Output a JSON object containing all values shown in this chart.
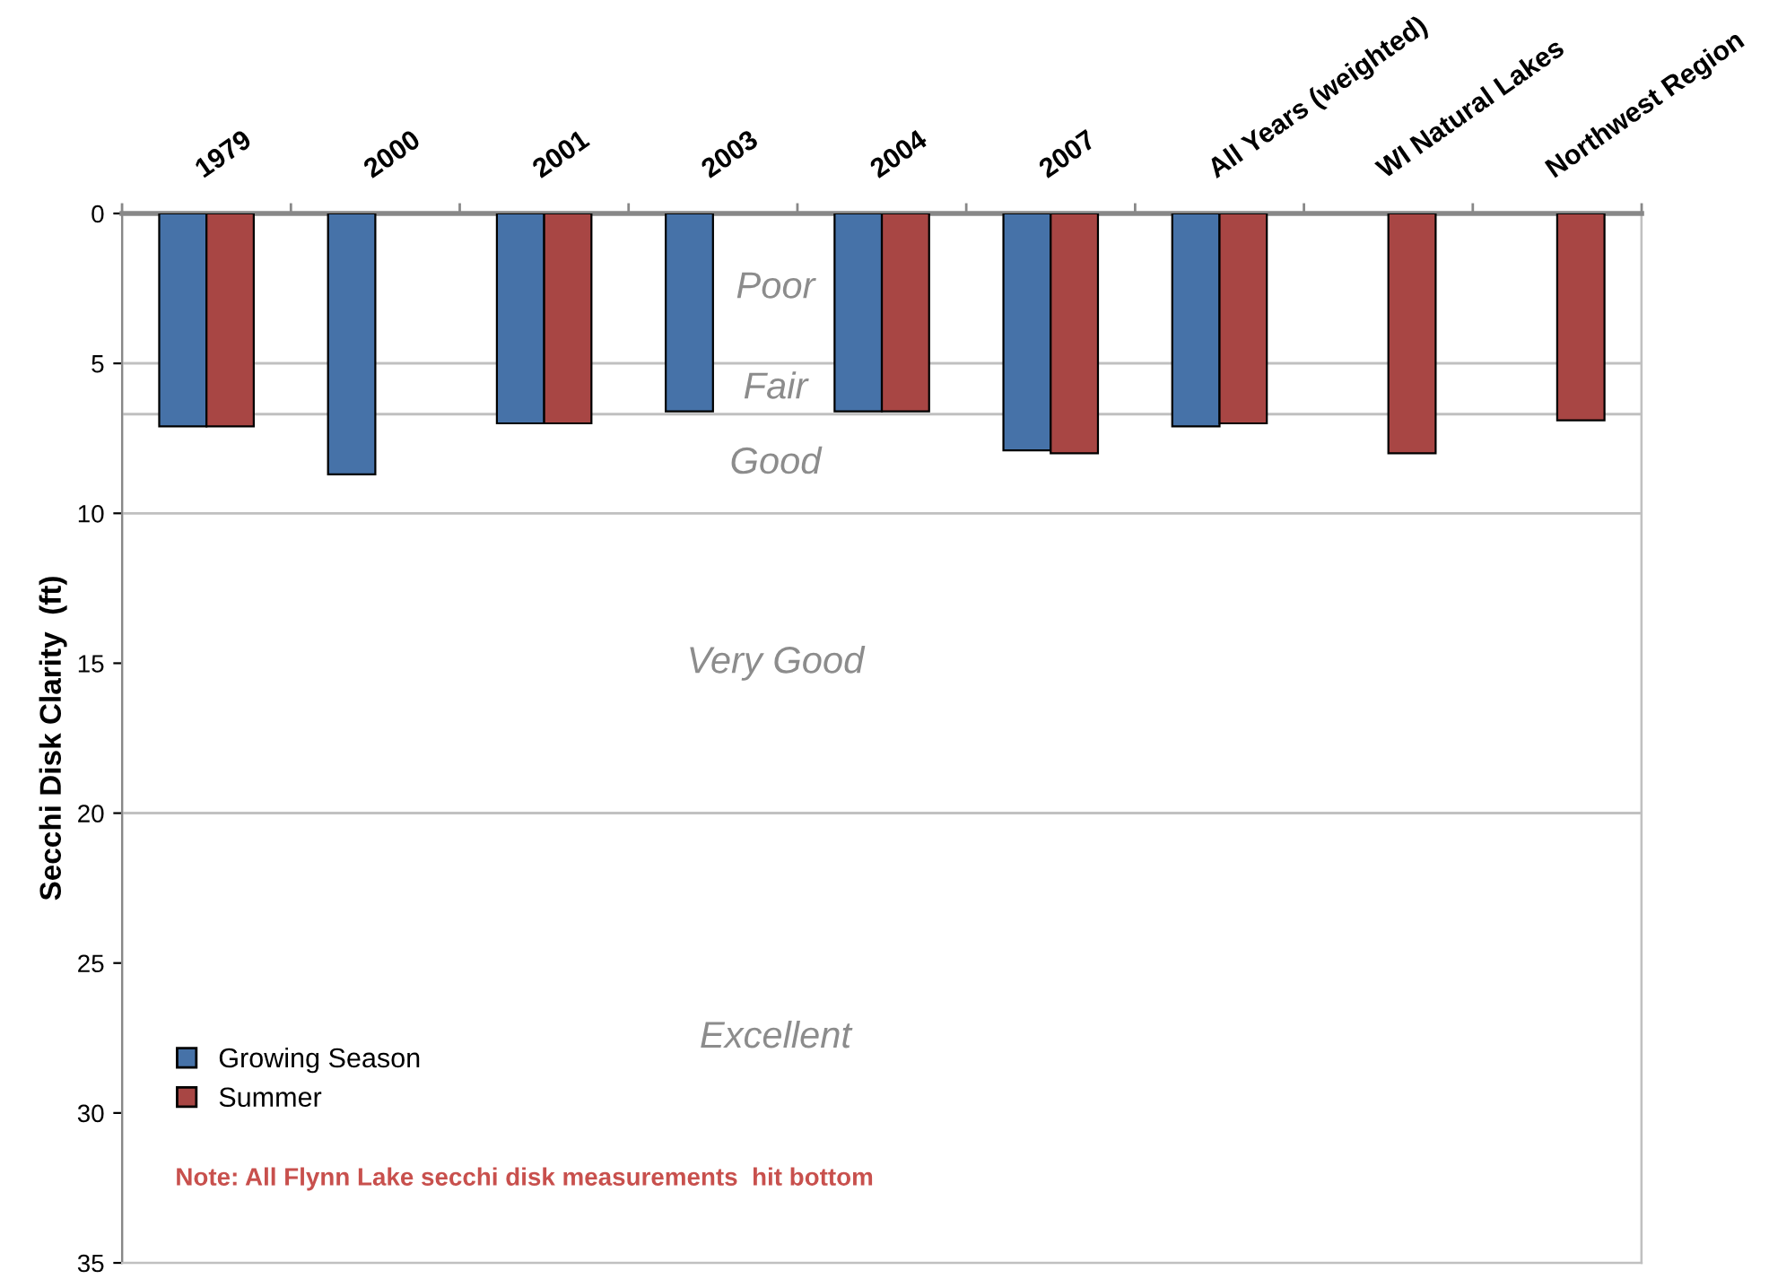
{
  "chart_data": {
    "type": "bar",
    "ylabel": "Secchi Disk Clarity  (ft)",
    "categories": [
      "1979",
      "2000",
      "2001",
      "2003",
      "2004",
      "2007",
      "All Years (weighted)",
      "WI Natural Lakes",
      "Northwest Region"
    ],
    "series": [
      {
        "name": "Growing Season",
        "color": "#4672a8",
        "values": [
          7.1,
          8.7,
          7.0,
          6.6,
          6.6,
          7.9,
          7.1,
          null,
          null
        ]
      },
      {
        "name": "Summer",
        "color": "#a84644",
        "values": [
          7.1,
          null,
          7.0,
          null,
          6.6,
          8.0,
          7.0,
          8.0,
          6.9
        ]
      }
    ],
    "ylim": [
      35,
      0
    ],
    "yticks": [
      0,
      5,
      10,
      15,
      20,
      25,
      30,
      35
    ],
    "bands": [
      {
        "axis": "y",
        "from": 0,
        "to": 5,
        "label": "Poor",
        "color": "#ffffff"
      },
      {
        "axis": "y",
        "from": 5,
        "to": 6.7,
        "label": "Fair",
        "color": "#ffffff"
      },
      {
        "axis": "y",
        "from": 6.7,
        "to": 10,
        "label": "Good",
        "color": "#ffffff"
      },
      {
        "axis": "y",
        "from": 10,
        "to": 20,
        "label": "Very Good",
        "color": "#ffffff"
      },
      {
        "axis": "y",
        "from": 20,
        "to": 35,
        "label": "Excellent",
        "color": "#ffffff"
      }
    ],
    "annotations": [
      "Note: All Flynn Lake secchi disk measurements  hit bottom"
    ],
    "legend": "bottom left"
  }
}
